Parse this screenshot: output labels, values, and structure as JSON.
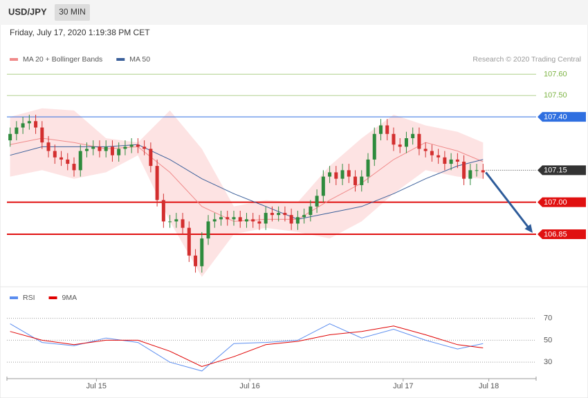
{
  "header": {
    "symbol": "USD/JPY",
    "interval": "30 MIN",
    "timestamp": "Friday, July 17, 2020 1:19:38 PM CET"
  },
  "chart_data": [
    {
      "type": "candlestick",
      "credit": "Research © 2020 Trading Central",
      "ylim": [
        106.62,
        107.64
      ],
      "xlim": [
        -0.5,
        82.3
      ],
      "up_color": "#2e8b3d",
      "down_color": "#d32f2f",
      "candles": {
        "open": [
          107.29,
          107.32,
          107.35,
          107.37,
          107.38,
          107.35,
          107.28,
          107.24,
          107.21,
          107.2,
          107.18,
          107.15,
          107.24,
          107.25,
          107.26,
          107.24,
          107.26,
          107.22,
          107.25,
          107.26,
          107.27,
          107.26,
          107.25,
          107.17,
          107.01,
          106.91,
          106.91,
          106.92,
          106.88,
          106.75,
          106.7,
          106.83,
          106.91,
          106.92,
          106.93,
          106.92,
          106.93,
          106.91,
          106.92,
          106.91,
          106.9,
          106.95,
          106.94,
          106.95,
          106.94,
          106.9,
          106.93,
          106.94,
          106.98,
          107.03,
          107.12,
          107.14,
          107.11,
          107.15,
          107.12,
          107.08,
          107.12,
          107.2,
          107.32,
          107.36,
          107.32,
          107.27,
          107.26,
          107.3,
          107.32,
          107.25,
          107.24,
          107.22,
          107.21,
          107.18,
          107.2,
          107.19,
          107.11,
          107.15,
          107.15
        ],
        "high": [
          107.35,
          107.38,
          107.4,
          107.41,
          107.41,
          107.38,
          107.31,
          107.27,
          107.24,
          107.23,
          107.21,
          107.27,
          107.28,
          107.29,
          107.29,
          107.29,
          107.29,
          107.28,
          107.29,
          107.3,
          107.3,
          107.29,
          107.28,
          107.2,
          107.04,
          106.94,
          106.95,
          106.95,
          106.91,
          106.78,
          106.86,
          106.94,
          106.95,
          106.96,
          106.96,
          106.96,
          106.96,
          106.95,
          106.95,
          106.94,
          106.98,
          106.98,
          106.98,
          106.98,
          106.97,
          106.96,
          106.97,
          107.01,
          107.06,
          107.15,
          107.17,
          107.17,
          107.18,
          107.18,
          107.15,
          107.15,
          107.23,
          107.35,
          107.39,
          107.39,
          107.35,
          107.3,
          107.33,
          107.35,
          107.35,
          107.28,
          107.27,
          107.25,
          107.24,
          107.23,
          107.23,
          107.22,
          107.18,
          107.18,
          107.18
        ],
        "low": [
          107.26,
          107.29,
          107.32,
          107.34,
          107.32,
          107.25,
          107.21,
          107.18,
          107.17,
          107.15,
          107.12,
          107.12,
          107.21,
          107.22,
          107.21,
          107.21,
          107.19,
          107.19,
          107.22,
          107.23,
          107.23,
          107.22,
          107.14,
          106.98,
          106.88,
          106.88,
          106.88,
          106.85,
          106.72,
          106.67,
          106.67,
          106.8,
          106.88,
          106.89,
          106.89,
          106.89,
          106.88,
          106.88,
          106.88,
          106.87,
          106.87,
          106.91,
          106.91,
          106.91,
          106.87,
          106.87,
          106.9,
          106.91,
          106.95,
          107.0,
          107.09,
          107.08,
          107.08,
          107.09,
          107.05,
          107.05,
          107.09,
          107.17,
          107.29,
          107.29,
          107.24,
          107.23,
          107.23,
          107.27,
          107.22,
          107.21,
          107.19,
          107.18,
          107.15,
          107.15,
          107.16,
          107.08,
          107.08,
          107.12,
          107.11
        ],
        "close": [
          107.32,
          107.35,
          107.37,
          107.38,
          107.35,
          107.28,
          107.24,
          107.21,
          107.2,
          107.18,
          107.15,
          107.24,
          107.25,
          107.26,
          107.24,
          107.26,
          107.22,
          107.25,
          107.26,
          107.27,
          107.26,
          107.25,
          107.17,
          107.01,
          106.91,
          106.91,
          106.92,
          106.88,
          106.75,
          106.7,
          106.83,
          106.91,
          106.92,
          106.93,
          106.92,
          106.93,
          106.91,
          106.92,
          106.91,
          106.9,
          106.95,
          106.94,
          106.95,
          106.94,
          106.9,
          106.93,
          106.94,
          106.98,
          107.03,
          107.12,
          107.14,
          107.11,
          107.15,
          107.12,
          107.08,
          107.12,
          107.2,
          107.32,
          107.36,
          107.32,
          107.27,
          107.26,
          107.3,
          107.32,
          107.25,
          107.24,
          107.22,
          107.21,
          107.18,
          107.2,
          107.19,
          107.11,
          107.15,
          107.15,
          107.14
        ]
      },
      "series": [
        {
          "name": "MA 20 + Bollinger Bands",
          "color": "#f08a8a",
          "band_color": "#fde3e3",
          "x": [
            0,
            5,
            10,
            15,
            20,
            25,
            30,
            35,
            40,
            45,
            50,
            55,
            60,
            65,
            70,
            74
          ],
          "values": [
            107.27,
            107.3,
            107.28,
            107.25,
            107.26,
            107.14,
            106.98,
            106.91,
            106.92,
            106.92,
            107.01,
            107.09,
            107.2,
            107.28,
            107.24,
            107.19
          ],
          "band_upper": [
            107.4,
            107.44,
            107.43,
            107.3,
            107.28,
            107.43,
            107.25,
            106.98,
            107.01,
            107.0,
            107.17,
            107.3,
            107.41,
            107.36,
            107.33,
            107.28
          ],
          "band_lower": [
            107.12,
            107.15,
            107.11,
            107.14,
            107.22,
            106.91,
            106.65,
            106.85,
            106.88,
            106.86,
            106.83,
            106.91,
            107.04,
            107.15,
            107.12,
            107.11
          ]
        },
        {
          "name": "MA 50",
          "color": "#3a5f9a",
          "x": [
            0,
            5,
            10,
            15,
            20,
            25,
            30,
            35,
            40,
            45,
            50,
            55,
            60,
            65,
            70,
            74
          ],
          "values": [
            107.22,
            107.26,
            107.26,
            107.26,
            107.27,
            107.2,
            107.11,
            107.04,
            106.98,
            106.92,
            106.95,
            106.98,
            107.04,
            107.11,
            107.17,
            107.2
          ]
        }
      ],
      "levels": [
        {
          "value": 107.6,
          "label": "107.60",
          "color": "#7cb342",
          "style": "text",
          "line": "thin"
        },
        {
          "value": 107.5,
          "label": "107.50",
          "color": "#7cb342",
          "style": "text",
          "line": "thin"
        },
        {
          "value": 107.4,
          "label": "107.40",
          "color": "#2f6fe0",
          "style": "box",
          "line": "thin"
        },
        {
          "value": 107.15,
          "label": "107.15",
          "color": "#333333",
          "style": "box",
          "line": "dotted"
        },
        {
          "value": 107,
          "label": "107.00",
          "color": "#e01010",
          "style": "box",
          "line": "thick"
        },
        {
          "value": 106.85,
          "label": "106.85",
          "color": "#e01010",
          "style": "box",
          "line": "thick"
        }
      ],
      "arrow_color": "#2e5c9a"
    },
    {
      "type": "line",
      "ylim": [
        15,
        83
      ],
      "yticks": [
        70,
        50,
        30
      ],
      "xlim": [
        -0.5,
        82.3
      ],
      "xticks": [
        {
          "value": 13.5,
          "label": "Jul 15"
        },
        {
          "value": 37.5,
          "label": "Jul 16"
        },
        {
          "value": 61.5,
          "label": "Jul 17"
        },
        {
          "value": 74.9,
          "label": "Jul 18"
        }
      ],
      "series": [
        {
          "name": "RSI",
          "color": "#5b8def",
          "x": [
            0,
            5,
            10,
            15,
            20,
            25,
            30,
            35,
            40,
            45,
            50,
            55,
            60,
            65,
            70,
            74
          ],
          "values": [
            65,
            48,
            45,
            52,
            48,
            30,
            22,
            47,
            48,
            50,
            65,
            52,
            60,
            50,
            42,
            47
          ]
        },
        {
          "name": "9MA",
          "color": "#e00000",
          "x": [
            0,
            5,
            10,
            15,
            20,
            25,
            30,
            35,
            40,
            45,
            50,
            55,
            60,
            65,
            70,
            74
          ],
          "values": [
            58,
            50,
            46,
            50,
            50,
            40,
            26,
            35,
            46,
            49,
            55,
            58,
            63,
            55,
            46,
            43
          ]
        }
      ]
    }
  ]
}
